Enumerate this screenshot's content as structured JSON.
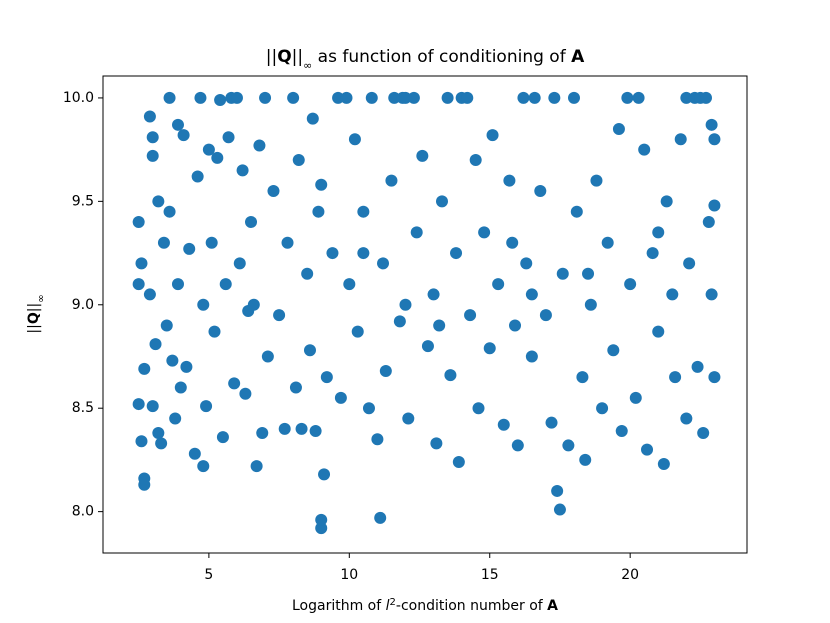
{
  "chart_data": {
    "type": "scatter",
    "title": {
      "pre": "||",
      "bold": "Q",
      "mid": "||",
      "sub": "∞",
      "text": " as function of conditioning of ",
      "bold2": "A"
    },
    "xlabel": {
      "text": "Logarithm of ",
      "italic": "l",
      "sup": "2",
      "text2": "-condition number of ",
      "bold": "A"
    },
    "ylabel": {
      "pre": "||",
      "bold": "Q",
      "mid": "||",
      "sub": "∞"
    },
    "color": "#1f77b4",
    "xlim": [
      1.23,
      24.16
    ],
    "ylim": [
      7.8,
      10.106
    ],
    "xticks": [
      5,
      10,
      15,
      20
    ],
    "yticks": [
      {
        "value": 8,
        "label": "8.0"
      },
      8.5,
      {
        "value": 9,
        "label": "9.0"
      },
      9.5,
      {
        "value": 10,
        "label": "10.0"
      }
    ],
    "x": [
      2.5,
      2.6,
      2.5,
      2.7,
      2.6,
      2.7,
      2.7,
      2.9,
      3.0,
      3.0,
      2.9,
      3.1,
      3.0,
      3.2,
      3.3,
      3.2,
      3.4,
      3.5,
      3.6,
      3.6,
      3.7,
      3.8,
      3.9,
      3.9,
      4.1,
      4.2,
      4.3,
      4.5,
      4.6,
      4.7,
      4.8,
      4.8,
      4.9,
      5.0,
      5.1,
      5.2,
      5.3,
      5.4,
      5.5,
      5.6,
      5.7,
      5.8,
      5.9,
      6.0,
      6.1,
      6.2,
      6.3,
      6.4,
      6.5,
      6.7,
      6.8,
      6.9,
      7.0,
      7.1,
      7.3,
      7.5,
      7.7,
      7.8,
      8.0,
      8.1,
      8.2,
      8.3,
      8.5,
      8.6,
      8.7,
      8.8,
      9.0,
      9.0,
      9.1,
      9.0,
      9.2,
      9.4,
      9.6,
      9.7,
      9.9,
      10.0,
      10.2,
      10.3,
      10.5,
      10.7,
      10.8,
      11.0,
      11.1,
      11.2,
      11.3,
      11.5,
      11.6,
      11.8,
      11.9,
      12.0,
      12.1,
      12.3,
      12.4,
      12.6,
      12.8,
      13.0,
      13.1,
      13.3,
      13.5,
      13.6,
      13.8,
      13.9,
      14.0,
      14.2,
      14.3,
      14.5,
      14.6,
      14.8,
      15.0,
      15.1,
      15.3,
      15.5,
      15.7,
      15.9,
      16.0,
      16.2,
      16.3,
      16.5,
      16.6,
      16.8,
      17.0,
      17.2,
      17.3,
      17.4,
      17.5,
      17.6,
      17.8,
      18.0,
      18.1,
      18.3,
      18.4,
      18.6,
      18.8,
      19.0,
      19.2,
      19.4,
      19.6,
      19.7,
      19.9,
      20.0,
      20.2,
      20.3,
      20.5,
      20.6,
      20.8,
      21.0,
      21.2,
      21.3,
      21.5,
      21.6,
      21.8,
      22.0,
      22.0,
      22.1,
      22.3,
      22.4,
      22.5,
      22.6,
      22.7,
      22.8,
      22.9,
      23.0,
      23.0,
      23.0,
      22.9,
      2.5,
      4.0,
      6.6,
      8.9,
      10.5,
      13.2,
      15.8,
      18.5,
      21.0,
      12.0,
      16.5
    ],
    "values": [
      9.4,
      9.2,
      8.52,
      8.69,
      8.34,
      8.13,
      8.16,
      9.91,
      9.81,
      9.72,
      9.05,
      8.81,
      8.51,
      8.38,
      8.33,
      9.5,
      9.3,
      8.9,
      10.0,
      9.45,
      8.73,
      8.45,
      9.87,
      9.1,
      9.82,
      8.7,
      9.27,
      8.28,
      9.62,
      10.0,
      8.22,
      9.0,
      8.51,
      9.75,
      9.3,
      8.87,
      9.71,
      9.99,
      8.36,
      9.1,
      9.81,
      10.0,
      8.62,
      10.0,
      9.2,
      9.65,
      8.57,
      8.97,
      9.4,
      8.22,
      9.77,
      8.38,
      10.0,
      8.75,
      9.55,
      8.95,
      8.4,
      9.3,
      10.0,
      8.6,
      9.7,
      8.4,
      9.15,
      8.78,
      9.9,
      8.39,
      7.92,
      7.96,
      8.18,
      9.58,
      8.65,
      9.25,
      10.0,
      8.55,
      10.0,
      9.1,
      9.8,
      8.87,
      9.45,
      8.5,
      10.0,
      8.35,
      7.97,
      9.2,
      8.68,
      9.6,
      10.0,
      8.92,
      10.0,
      10.0,
      8.45,
      10.0,
      9.35,
      9.72,
      8.8,
      9.05,
      8.33,
      9.5,
      10.0,
      8.66,
      9.25,
      8.24,
      10.0,
      10.0,
      8.95,
      9.7,
      8.5,
      9.35,
      8.79,
      9.82,
      9.1,
      8.42,
      9.6,
      8.9,
      8.32,
      10.0,
      9.2,
      8.75,
      10.0,
      9.55,
      8.95,
      8.43,
      10.0,
      8.1,
      8.01,
      9.15,
      8.32,
      10.0,
      9.45,
      8.65,
      8.25,
      9.0,
      9.6,
      8.5,
      9.3,
      8.78,
      9.85,
      8.39,
      10.0,
      9.1,
      8.55,
      10.0,
      9.75,
      8.3,
      9.25,
      8.87,
      8.23,
      9.5,
      9.05,
      8.65,
      9.8,
      10.0,
      8.45,
      9.2,
      10.0,
      8.7,
      10.0,
      8.38,
      10.0,
      9.4,
      9.87,
      8.65,
      9.8,
      9.48,
      9.05,
      9.1,
      8.6,
      9.0,
      9.45,
      9.25,
      8.9,
      9.3,
      9.15,
      9.35,
      9.0,
      9.05
    ]
  }
}
